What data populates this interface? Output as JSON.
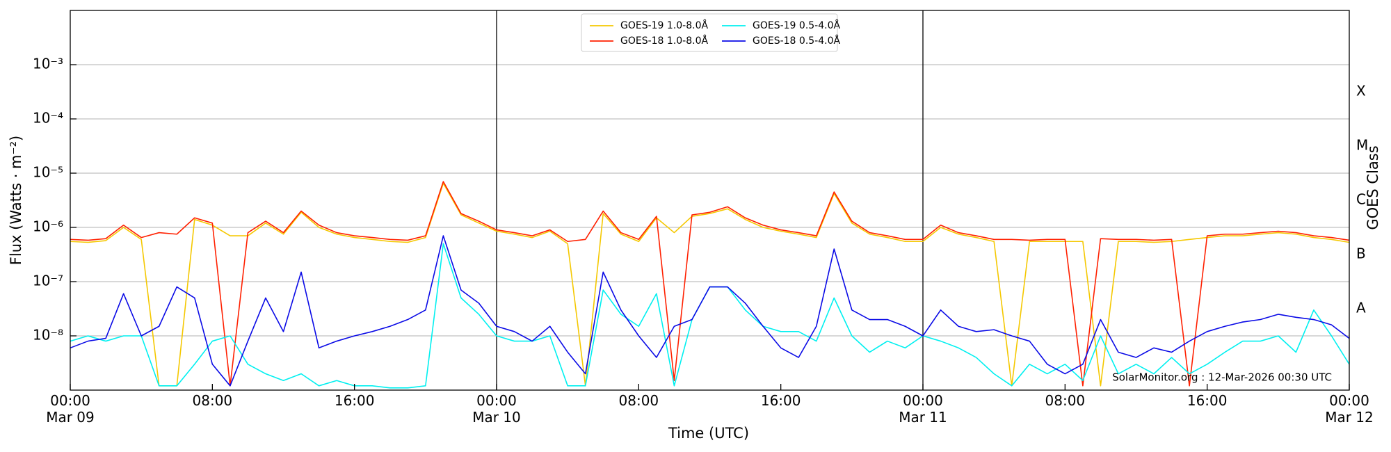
{
  "chart_data": {
    "type": "line",
    "x_label": "Time (UTC)",
    "y_label": "Flux (Watts · m⁻²)",
    "y2_label": "GOES Class",
    "annotation": "SolarMonitor.org : 12-Mar-2026 00:30 UTC",
    "log_scale": true,
    "grid": true,
    "legend_position": "upper center",
    "legend_columns": 2,
    "xlim": [
      "Mar 09 00:00",
      "Mar 12 00:00"
    ],
    "xticks": [
      {
        "value": "Mar 09 00:00",
        "label": [
          "00:00",
          "Mar 09"
        ]
      },
      {
        "value": "Mar 09 08:00",
        "label": [
          "08:00"
        ]
      },
      {
        "value": "Mar 09 16:00",
        "label": [
          "16:00"
        ]
      },
      {
        "value": "Mar 10 00:00",
        "label": [
          "00:00",
          "Mar 10"
        ]
      },
      {
        "value": "Mar 10 08:00",
        "label": [
          "08:00"
        ]
      },
      {
        "value": "Mar 10 16:00",
        "label": [
          "16:00"
        ]
      },
      {
        "value": "Mar 11 00:00",
        "label": [
          "00:00",
          "Mar 11"
        ]
      },
      {
        "value": "Mar 11 08:00",
        "label": [
          "08:00"
        ]
      },
      {
        "value": "Mar 11 16:00",
        "label": [
          "16:00"
        ]
      },
      {
        "value": "Mar 12 00:00",
        "label": [
          "00:00",
          "Mar 12"
        ]
      }
    ],
    "ylim": [
      1e-09,
      0.01
    ],
    "yticks": [
      {
        "value": 1e-08,
        "label": "10⁻⁸"
      },
      {
        "value": 1e-07,
        "label": "10⁻⁷"
      },
      {
        "value": 1e-06,
        "label": "10⁻⁶"
      },
      {
        "value": 1e-05,
        "label": "10⁻⁵"
      },
      {
        "value": 0.0001,
        "label": "10⁻⁴"
      },
      {
        "value": 0.001,
        "label": "10⁻³"
      }
    ],
    "y2lim": [
      1e-09,
      0.01
    ],
    "y2ticks": [
      {
        "value": 3.16e-08,
        "label": "A"
      },
      {
        "value": 3.16e-07,
        "label": "B"
      },
      {
        "value": 3.16e-06,
        "label": "C"
      },
      {
        "value": 3.16e-05,
        "label": "M"
      },
      {
        "value": 0.000316,
        "label": "X"
      }
    ],
    "x": [
      "Mar 09 00:00",
      "Mar 09 01:00",
      "Mar 09 02:00",
      "Mar 09 03:00",
      "Mar 09 04:00",
      "Mar 09 05:00",
      "Mar 09 06:00",
      "Mar 09 07:00",
      "Mar 09 08:00",
      "Mar 09 09:00",
      "Mar 09 10:00",
      "Mar 09 11:00",
      "Mar 09 12:00",
      "Mar 09 13:00",
      "Mar 09 14:00",
      "Mar 09 15:00",
      "Mar 09 16:00",
      "Mar 09 17:00",
      "Mar 09 18:00",
      "Mar 09 19:00",
      "Mar 09 20:00",
      "Mar 09 21:00",
      "Mar 09 22:00",
      "Mar 09 23:00",
      "Mar 10 00:00",
      "Mar 10 01:00",
      "Mar 10 02:00",
      "Mar 10 03:00",
      "Mar 10 04:00",
      "Mar 10 05:00",
      "Mar 10 06:00",
      "Mar 10 07:00",
      "Mar 10 08:00",
      "Mar 10 09:00",
      "Mar 10 10:00",
      "Mar 10 11:00",
      "Mar 10 12:00",
      "Mar 10 13:00",
      "Mar 10 14:00",
      "Mar 10 15:00",
      "Mar 10 16:00",
      "Mar 10 17:00",
      "Mar 10 18:00",
      "Mar 10 19:00",
      "Mar 10 20:00",
      "Mar 10 21:00",
      "Mar 10 22:00",
      "Mar 10 23:00",
      "Mar 11 00:00",
      "Mar 11 01:00",
      "Mar 11 02:00",
      "Mar 11 03:00",
      "Mar 11 04:00",
      "Mar 11 05:00",
      "Mar 11 06:00",
      "Mar 11 07:00",
      "Mar 11 08:00",
      "Mar 11 09:00",
      "Mar 11 10:00",
      "Mar 11 11:00",
      "Mar 11 12:00",
      "Mar 11 13:00",
      "Mar 11 14:00",
      "Mar 11 15:00",
      "Mar 11 16:00",
      "Mar 11 17:00",
      "Mar 11 18:00",
      "Mar 11 19:00",
      "Mar 11 20:00",
      "Mar 11 21:00",
      "Mar 11 22:00",
      "Mar 11 23:00",
      "Mar 12 00:00"
    ],
    "series": [
      {
        "name": "GOES-19 1.0-8.0Å",
        "color": "#f5c800",
        "values": [
          5.5e-07,
          5.3e-07,
          5.7e-07,
          1e-06,
          6e-07,
          1.2e-09,
          1.2e-09,
          1.4e-06,
          1.1e-06,
          7e-07,
          7e-07,
          1.2e-06,
          7.5e-07,
          1.9e-06,
          1e-06,
          7.5e-07,
          6.5e-07,
          6e-07,
          5.5e-07,
          5.3e-07,
          6.5e-07,
          6.5e-06,
          1.7e-06,
          1.2e-06,
          8.5e-07,
          7.5e-07,
          6.5e-07,
          8.5e-07,
          5e-07,
          1.2e-09,
          1.8e-06,
          7.5e-07,
          5.5e-07,
          1.5e-06,
          8e-07,
          1.6e-06,
          1.8e-06,
          2.2e-06,
          1.4e-06,
          1e-06,
          8.5e-07,
          7.5e-07,
          6.5e-07,
          4.2e-06,
          1.2e-06,
          7.5e-07,
          6.5e-07,
          5.5e-07,
          5.5e-07,
          1e-06,
          7.5e-07,
          6.5e-07,
          5.5e-07,
          1.2e-09,
          5.5e-07,
          5.5e-07,
          5.5e-07,
          5.5e-07,
          1.2e-09,
          5.5e-07,
          5.5e-07,
          5.3e-07,
          5.5e-07,
          6e-07,
          6.5e-07,
          7e-07,
          7e-07,
          7.5e-07,
          8e-07,
          7.5e-07,
          6.5e-07,
          6e-07,
          5.3e-07
        ]
      },
      {
        "name": "GOES-18 1.0-8.0Å",
        "color": "#ff2000",
        "values": [
          6e-07,
          5.8e-07,
          6.2e-07,
          1.1e-06,
          6.5e-07,
          8e-07,
          7.5e-07,
          1.5e-06,
          1.2e-06,
          1.2e-09,
          8e-07,
          1.3e-06,
          8e-07,
          2e-06,
          1.1e-06,
          8e-07,
          7e-07,
          6.5e-07,
          6e-07,
          5.8e-07,
          7e-07,
          7e-06,
          1.8e-06,
          1.3e-06,
          9e-07,
          8e-07,
          7e-07,
          9e-07,
          5.5e-07,
          6e-07,
          2e-06,
          8e-07,
          6e-07,
          1.6e-06,
          1.5e-09,
          1.7e-06,
          1.9e-06,
          2.4e-06,
          1.5e-06,
          1.1e-06,
          9e-07,
          8e-07,
          7e-07,
          4.5e-06,
          1.3e-06,
          8e-07,
          7e-07,
          6e-07,
          6e-07,
          1.1e-06,
          8e-07,
          7e-07,
          6e-07,
          6e-07,
          5.8e-07,
          6e-07,
          6e-07,
          1.2e-09,
          6.2e-07,
          6e-07,
          6e-07,
          5.8e-07,
          6e-07,
          1.2e-09,
          7e-07,
          7.5e-07,
          7.5e-07,
          8e-07,
          8.5e-07,
          8e-07,
          7e-07,
          6.5e-07,
          5.8e-07
        ]
      },
      {
        "name": "GOES-19 0.5-4.0Å",
        "color": "#00f0f0",
        "values": [
          8e-09,
          1e-08,
          8e-09,
          1e-08,
          1e-08,
          1.2e-09,
          1.2e-09,
          3e-09,
          8e-09,
          1e-08,
          3e-09,
          2e-09,
          1.5e-09,
          2e-09,
          1.2e-09,
          1.5e-09,
          1.2e-09,
          1.2e-09,
          1.1e-09,
          1.1e-09,
          1.2e-09,
          5e-07,
          5e-08,
          2.5e-08,
          1e-08,
          8e-09,
          8e-09,
          1e-08,
          1.2e-09,
          1.2e-09,
          7e-08,
          2.5e-08,
          1.5e-08,
          6e-08,
          1.2e-09,
          2e-08,
          8e-08,
          8e-08,
          3e-08,
          1.5e-08,
          1.2e-08,
          1.2e-08,
          8e-09,
          5e-08,
          1e-08,
          5e-09,
          8e-09,
          6e-09,
          1e-08,
          8e-09,
          6e-09,
          4e-09,
          2e-09,
          1.2e-09,
          3e-09,
          2e-09,
          3e-09,
          1.5e-09,
          1e-08,
          2e-09,
          3e-09,
          2e-09,
          4e-09,
          2e-09,
          3e-09,
          5e-09,
          8e-09,
          8e-09,
          1e-08,
          5e-09,
          3e-08,
          1e-08,
          3e-09
        ]
      },
      {
        "name": "GOES-18 0.5-4.0Å",
        "color": "#0a0ae6",
        "values": [
          6e-09,
          8e-09,
          9e-09,
          6e-08,
          1e-08,
          1.5e-08,
          8e-08,
          5e-08,
          3e-09,
          1.2e-09,
          8e-09,
          5e-08,
          1.2e-08,
          1.5e-07,
          6e-09,
          8e-09,
          1e-08,
          1.2e-08,
          1.5e-08,
          2e-08,
          3e-08,
          7e-07,
          7e-08,
          4e-08,
          1.5e-08,
          1.2e-08,
          8e-09,
          1.5e-08,
          5e-09,
          2e-09,
          1.5e-07,
          3e-08,
          1e-08,
          4e-09,
          1.5e-08,
          2e-08,
          8e-08,
          8e-08,
          4e-08,
          1.5e-08,
          6e-09,
          4e-09,
          1.5e-08,
          4e-07,
          3e-08,
          2e-08,
          2e-08,
          1.5e-08,
          1e-08,
          3e-08,
          1.5e-08,
          1.2e-08,
          1.3e-08,
          1e-08,
          8e-09,
          3e-09,
          2e-09,
          3e-09,
          2e-08,
          5e-09,
          4e-09,
          6e-09,
          5e-09,
          8e-09,
          1.2e-08,
          1.5e-08,
          1.8e-08,
          2e-08,
          2.5e-08,
          2.2e-08,
          2e-08,
          1.6e-08,
          9e-09
        ]
      }
    ]
  }
}
